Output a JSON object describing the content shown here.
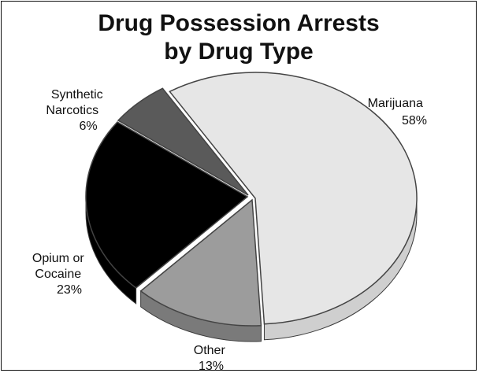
{
  "chart_data": {
    "type": "pie",
    "title_lines": [
      "Drug Possession Arrests",
      "by Drug Type"
    ],
    "slices": [
      {
        "label_lines": [
          "Marijuana"
        ],
        "value_label": "58%",
        "value": 58,
        "color": "#e6e6e6",
        "side_color": "#cfcfcf"
      },
      {
        "label_lines": [
          "Other"
        ],
        "value_label": "13%",
        "value": 13,
        "color": "#9c9c9c",
        "side_color": "#7a7a7a"
      },
      {
        "label_lines": [
          "Opium or",
          "Cocaine"
        ],
        "value_label": "23%",
        "value": 23,
        "color": "#000000",
        "side_color": "#000000"
      },
      {
        "label_lines": [
          "Synthetic",
          "Narcotics"
        ],
        "value_label": "6%",
        "value": 6,
        "color": "#5a5a5a",
        "side_color": "#434343"
      }
    ]
  }
}
